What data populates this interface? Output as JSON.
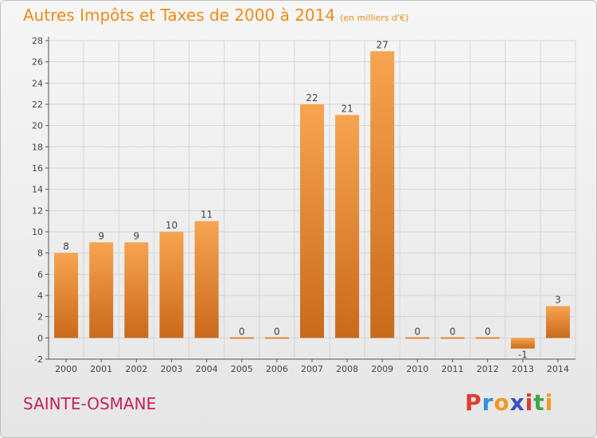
{
  "header": {
    "title": "Autres Impôts et Taxes de 2000 à 2014",
    "subtitle": "(en milliers d'€)"
  },
  "footer": {
    "commune": "SAINTE-OSMANE",
    "logo_letters": [
      "P",
      "r",
      "o",
      "x",
      "i",
      "t",
      "i"
    ],
    "logo_colors": [
      "#e33a2f",
      "#2f8fd8",
      "#f19a1f",
      "#3a4fc7",
      "#e33a2f",
      "#3aa845",
      "#f19a1f"
    ]
  },
  "colors": {
    "bar_light": "#f7a450",
    "bar_dark": "#c96a1a",
    "title": "#f08a1c",
    "commune": "#c82060",
    "grid": "#d6d6d6"
  },
  "chart_data": {
    "type": "bar",
    "categories": [
      "2000",
      "2001",
      "2002",
      "2003",
      "2004",
      "2005",
      "2006",
      "2007",
      "2008",
      "2009",
      "2010",
      "2011",
      "2012",
      "2013",
      "2014"
    ],
    "values": [
      8,
      9,
      9,
      10,
      11,
      0,
      0,
      22,
      21,
      27,
      0,
      0,
      0,
      -1,
      3
    ],
    "data_labels": [
      "8",
      "9",
      "9",
      "10",
      "11",
      "0",
      "0",
      "22",
      "21",
      "27",
      "0",
      "0",
      "0",
      "-1",
      "3"
    ],
    "ylim": [
      -2,
      28
    ],
    "yticks": [
      -2,
      0,
      2,
      4,
      6,
      8,
      10,
      12,
      14,
      16,
      18,
      20,
      22,
      24,
      26,
      28
    ],
    "grid": true,
    "title": "Autres Impôts et Taxes de 2000 à 2014",
    "xlabel": "",
    "ylabel": ""
  }
}
